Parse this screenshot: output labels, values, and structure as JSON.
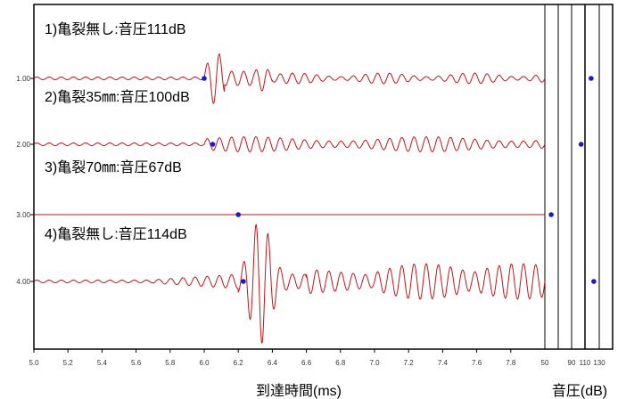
{
  "chart_data": {
    "type": "line",
    "y_categories": [
      "1.00",
      "2.00",
      "3.00",
      "4.00"
    ],
    "time_panel": {
      "xlabel": "到達時間(ms)",
      "xlim": [
        5.0,
        8.0
      ],
      "xticks": [
        "5.0",
        "5.2",
        "5.4",
        "5.6",
        "5.8",
        "6.0",
        "6.2",
        "6.4",
        "6.6",
        "6.8",
        "7.0",
        "7.2",
        "7.4",
        "7.6",
        "7.8"
      ]
    },
    "pressure_panel": {
      "xlabel": "音圧(dB)",
      "xticks": [
        "50",
        "90",
        "110",
        "130"
      ]
    },
    "series": [
      {
        "name": "1)亀裂無し:音圧111dB",
        "y": 1.0,
        "arrival_ms": 6.0,
        "sound_pressure_db": 111
      },
      {
        "name": "2)亀裂35㎜:音圧100dB",
        "y": 2.0,
        "arrival_ms": 6.05,
        "sound_pressure_db": 100
      },
      {
        "name": "3)亀裂70㎜:音圧67dB",
        "y": 3.0,
        "arrival_ms": 6.2,
        "sound_pressure_db": 67
      },
      {
        "name": "4)亀裂無し:音圧114dB",
        "y": 4.0,
        "arrival_ms": 6.23,
        "sound_pressure_db": 114
      }
    ],
    "colors": {
      "waveform": "#c0141a",
      "marker": "#1a1acc",
      "frame": "#000000"
    },
    "grid": false
  }
}
